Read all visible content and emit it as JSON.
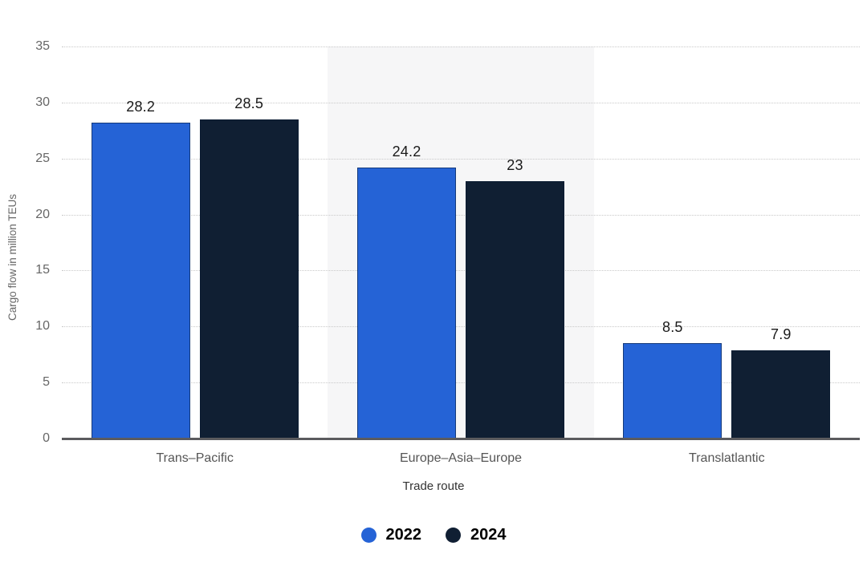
{
  "chart_data": {
    "type": "bar",
    "title": "",
    "categories": [
      "Trans–Pacific",
      "Europe–Asia–Europe",
      "Translatlantic"
    ],
    "series": [
      {
        "name": "2022",
        "color": "#2563d6",
        "values": [
          28.2,
          24.2,
          8.5
        ],
        "labels": [
          "28.2",
          "24.2",
          "8.5"
        ]
      },
      {
        "name": "2024",
        "color": "#101f33",
        "values": [
          28.5,
          23,
          7.9
        ],
        "labels": [
          "28.5",
          "23",
          "7.9"
        ]
      }
    ],
    "xlabel": "Trade route",
    "ylabel": "Cargo flow in million TEUs",
    "ylim": [
      0,
      35
    ],
    "yticks": [
      0,
      5,
      10,
      15,
      20,
      25,
      30,
      35
    ],
    "grid": "horizontal-dotted",
    "legend_position": "bottom",
    "appearance": {
      "background": "#ffffff",
      "alt_plot_band": "#f6f6f7",
      "gridline_color": "#c9c9c9",
      "axis_line_color": "#5b5b5e",
      "tick_label_color": "#666666",
      "category_label_color": "#555555",
      "value_label_color": "#1a1a1a"
    }
  }
}
